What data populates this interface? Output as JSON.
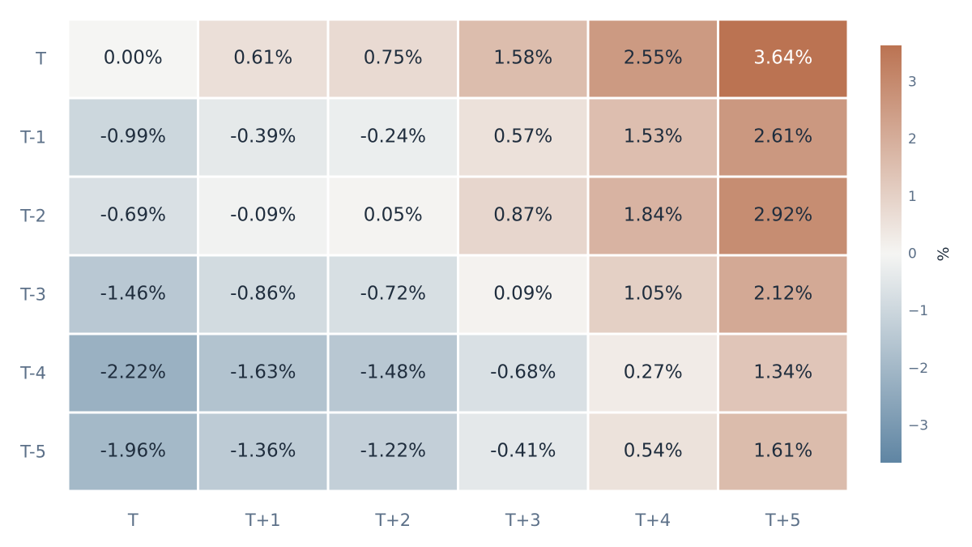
{
  "chart_data": {
    "type": "heatmap",
    "title": "",
    "rows": [
      "T",
      "T-1",
      "T-2",
      "T-3",
      "T-4",
      "T-5"
    ],
    "columns": [
      "T",
      "T+1",
      "T+2",
      "T+3",
      "T+4",
      "T+5"
    ],
    "values": [
      [
        0.0,
        0.61,
        0.75,
        1.58,
        2.55,
        3.64
      ],
      [
        -0.99,
        -0.39,
        -0.24,
        0.57,
        1.53,
        2.61
      ],
      [
        -0.69,
        -0.09,
        0.05,
        0.87,
        1.84,
        2.92
      ],
      [
        -1.46,
        -0.86,
        -0.72,
        0.09,
        1.05,
        2.12
      ],
      [
        -2.22,
        -1.63,
        -1.48,
        -0.68,
        0.27,
        1.34
      ],
      [
        -1.96,
        -1.36,
        -1.22,
        -0.41,
        0.54,
        1.61
      ]
    ],
    "value_suffix": "%",
    "value_decimals": 2,
    "colorbar": {
      "title": "%",
      "range": [
        -3.64,
        3.64
      ],
      "ticks": [
        3,
        2,
        1,
        0,
        -1,
        -2,
        -3
      ],
      "tick_labels": [
        "3",
        "2",
        "1",
        "0",
        "−1",
        "−2",
        "−3"
      ]
    },
    "colors": {
      "negative": "#5f85a3",
      "neutral": "#f5f5f3",
      "positive": "#bb7352",
      "text_dark": "#1f2d3d",
      "text_light": "#ffffff",
      "axis_text": "#5c7088"
    },
    "legend_position": "right",
    "grid": false
  }
}
